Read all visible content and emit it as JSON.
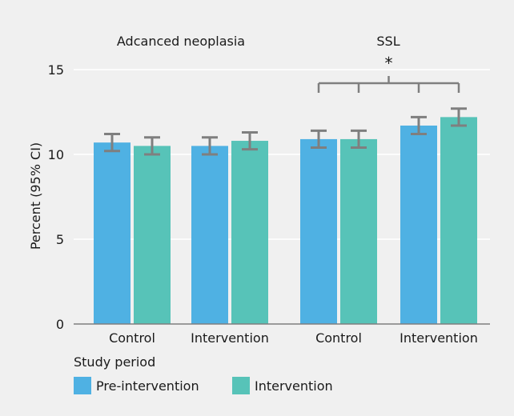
{
  "chart_data": {
    "type": "bar",
    "ylabel": "Percent (95% CI)",
    "xlabel": "Study period",
    "ylim": [
      0,
      15
    ],
    "yticks": [
      0,
      5,
      10,
      15
    ],
    "groups": [
      {
        "label": "Adcanced neoplasia",
        "categories": [
          "Control",
          "Intervention"
        ]
      },
      {
        "label": "SSL",
        "categories": [
          "Control",
          "Intervention"
        ]
      }
    ],
    "series": [
      {
        "name": "Pre-intervention",
        "color": "#4fb1e3",
        "values": [
          10.7,
          10.5,
          10.9,
          11.7
        ],
        "ci_low": [
          10.2,
          10.0,
          10.4,
          11.2
        ],
        "ci_high": [
          11.2,
          11.0,
          11.4,
          12.2
        ]
      },
      {
        "name": "Intervention",
        "color": "#57c3b8",
        "values": [
          10.5,
          10.8,
          10.9,
          12.2
        ],
        "ci_low": [
          10.0,
          10.3,
          10.4,
          11.7
        ],
        "ci_high": [
          11.0,
          11.3,
          11.4,
          12.7
        ]
      }
    ],
    "significance": {
      "label": "*",
      "group": "SSL"
    },
    "grid": true,
    "legend_position": "bottom-left"
  }
}
